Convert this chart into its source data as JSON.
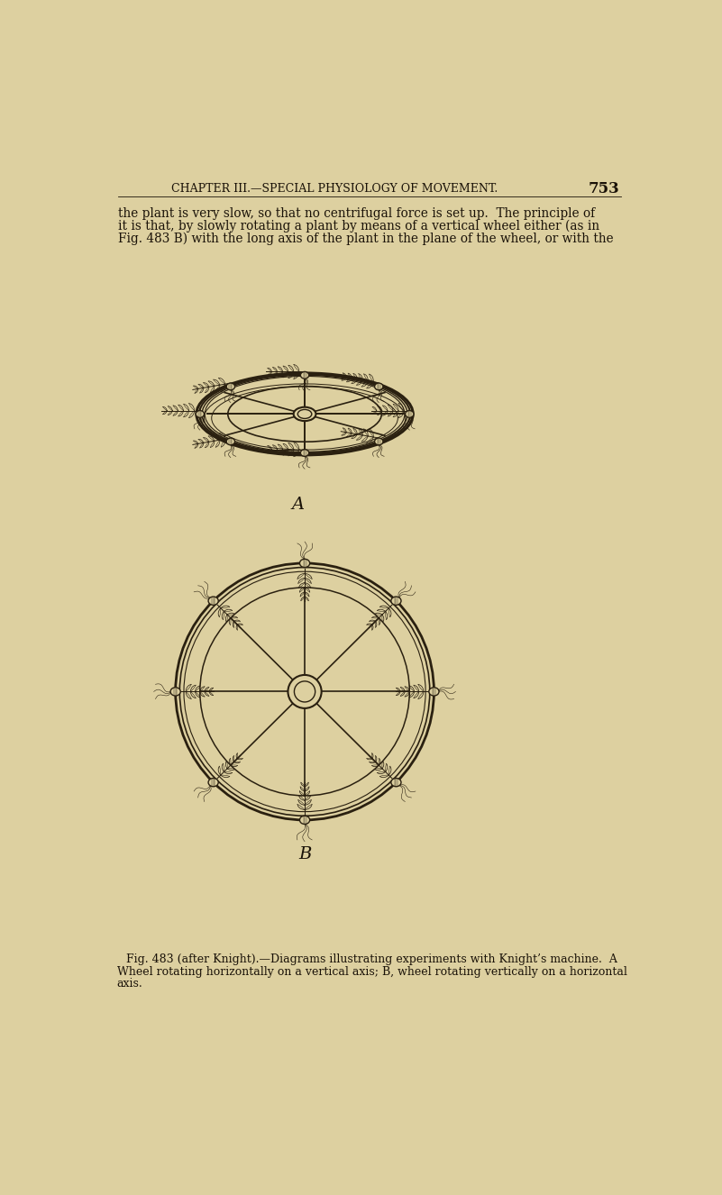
{
  "bg_color": "#ddd0a0",
  "text_color": "#1a1208",
  "header_text": "CHAPTER III.—SPECIAL PHYSIOLOGY OF MOVEMENT.",
  "page_number": "753",
  "body_text_line1": "the plant is very slow, so that no centrifugal force is set up.  The principle of",
  "body_text_line2": "it is that, by slowly rotating a plant by means of a vertical wheel either (as in",
  "body_text_line3": "Fig. 483 B) with the long axis of the plant in the plane of the wheel, or with the",
  "label_A": "A",
  "label_B": "B",
  "caption_line1": "Fig. 483 (after Knight).—Diagrams illustrating experiments with Knight’s machine.  A",
  "caption_line2": "Wheel rotating horizontally on a vertical axis; B, wheel rotating vertically on a horizontal",
  "caption_line3": "axis.",
  "line_color": "#2a2010",
  "fig_width": 8.01,
  "fig_height": 13.26
}
